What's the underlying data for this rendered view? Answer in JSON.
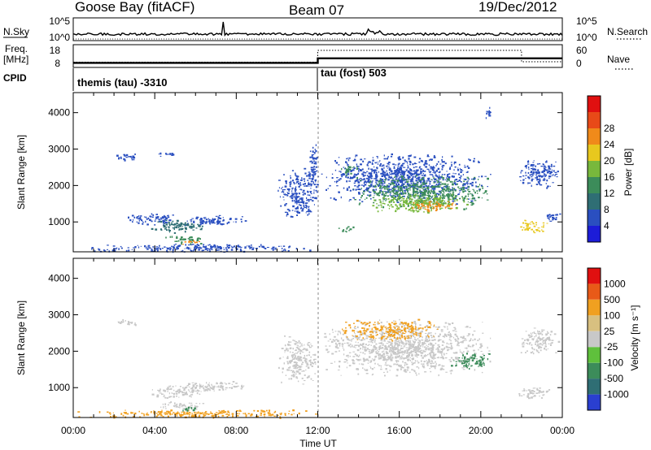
{
  "header": {
    "station": "Goose Bay (fitACF)",
    "beam": "Beam 07",
    "date": "19/Dec/2012"
  },
  "nsky_panel": {
    "left_label": "N.Sky",
    "right_label": "N.Search",
    "left_ticks": [
      "10^5",
      "10^0"
    ],
    "right_ticks": [
      "10^5",
      "10^0"
    ]
  },
  "freq_panel": {
    "left_label_top": "Freq.",
    "left_label_unit": "[MHz]",
    "left_ticks": [
      "18",
      "8"
    ],
    "right_label": "Nave",
    "right_ticks": [
      "60",
      "0"
    ]
  },
  "cpid_panel": {
    "label": "CPID",
    "modes": [
      {
        "name": "themis (tau) -3310",
        "start_hour": 0
      },
      {
        "name": "tau (fost) 503",
        "start_hour": 12
      }
    ]
  },
  "x_axis": {
    "label": "Time UT",
    "ticks": [
      "00:00",
      "04:00",
      "08:00",
      "12:00",
      "16:00",
      "20:00",
      "00:00"
    ],
    "tick_hours": [
      0,
      4,
      8,
      12,
      16,
      20,
      24
    ]
  },
  "power_panel": {
    "ylabel": "Slant Range [km]",
    "yticks": [
      "4000",
      "3000",
      "2000",
      "1000"
    ],
    "ytick_values": [
      4000,
      3000,
      2000,
      1000
    ],
    "colorbar_label": "Power [dB]",
    "colorbar_ticks": [
      "28",
      "24",
      "20",
      "16",
      "12",
      "8",
      "4"
    ],
    "colors": [
      "#1c1cd8",
      "#2a4fc0",
      "#2f6e74",
      "#3c8c5a",
      "#78b83c",
      "#e8c81e",
      "#f08a1a",
      "#e84a18",
      "#e01010"
    ]
  },
  "velocity_panel": {
    "ylabel": "Slant Range [km]",
    "yticks": [
      "4000",
      "3000",
      "2000",
      "1000"
    ],
    "ytick_values": [
      4000,
      3000,
      2000,
      1000
    ],
    "colorbar_label": "Velocity [m s⁻¹]",
    "colorbar_ticks": [
      "1000",
      "500",
      "100",
      "25",
      "-25",
      "-100",
      "-500",
      "-1000"
    ],
    "colors": [
      "#2a3fd0",
      "#2f6e74",
      "#3c8c5a",
      "#5fc03c",
      "#c8c8c8",
      "#d8c080",
      "#f0a020",
      "#e85a18",
      "#e01010"
    ]
  },
  "chart_data": [
    {
      "type": "heatmap",
      "title": "Power",
      "x_label": "Time UT",
      "y_label": "Slant Range [km]",
      "x_range_hours": [
        0,
        24
      ],
      "y_range_km": [
        180,
        4550
      ],
      "value_label": "Power [dB]",
      "value_range": [
        0,
        32
      ],
      "regions": [
        {
          "t0": 0.0,
          "t1": 12.0,
          "r0": 180,
          "r1": 420,
          "value": 6
        },
        {
          "t0": 4.5,
          "t1": 6.5,
          "r0": 400,
          "r1": 650,
          "value": 12
        },
        {
          "t0": 5.3,
          "t1": 6.2,
          "r0": 380,
          "r1": 520,
          "value": 22
        },
        {
          "t0": 2.6,
          "t1": 5.0,
          "r0": 900,
          "r1": 1300,
          "value": 6
        },
        {
          "t0": 3.6,
          "t1": 6.5,
          "r0": 700,
          "r1": 1100,
          "value": 10
        },
        {
          "t0": 5.0,
          "t1": 8.6,
          "r0": 900,
          "r1": 1200,
          "value": 7
        },
        {
          "t0": 2.0,
          "t1": 3.5,
          "r0": 2700,
          "r1": 2900,
          "value": 5
        },
        {
          "t0": 4.0,
          "t1": 5.0,
          "r0": 2800,
          "r1": 2950,
          "value": 5
        },
        {
          "t0": 10.0,
          "t1": 12.0,
          "r0": 1100,
          "r1": 2500,
          "value": 5
        },
        {
          "t0": 11.5,
          "t1": 12.0,
          "r0": 1400,
          "r1": 3300,
          "value": 5
        },
        {
          "t0": 12.0,
          "t1": 20.5,
          "r0": 1500,
          "r1": 2900,
          "value": 5
        },
        {
          "t0": 13.5,
          "t1": 20.5,
          "r0": 1350,
          "r1": 2300,
          "value": 12
        },
        {
          "t0": 14.5,
          "t1": 19.5,
          "r0": 1250,
          "r1": 1800,
          "value": 17
        },
        {
          "t0": 16.5,
          "t1": 19.0,
          "r0": 1300,
          "r1": 1600,
          "value": 22
        },
        {
          "t0": 13.0,
          "t1": 14.0,
          "r0": 2300,
          "r1": 2600,
          "value": 12
        },
        {
          "t0": 13.0,
          "t1": 13.8,
          "r0": 700,
          "r1": 900,
          "value": 12
        },
        {
          "t0": 20.2,
          "t1": 20.6,
          "r0": 3800,
          "r1": 4200,
          "value": 6
        },
        {
          "t0": 21.8,
          "t1": 23.9,
          "r0": 1900,
          "r1": 2800,
          "value": 6
        },
        {
          "t0": 21.8,
          "t1": 23.4,
          "r0": 700,
          "r1": 1100,
          "value": 18
        },
        {
          "t0": 23.0,
          "t1": 23.9,
          "r0": 1000,
          "r1": 1300,
          "value": 5
        }
      ]
    },
    {
      "type": "heatmap",
      "title": "Velocity",
      "x_label": "Time UT",
      "y_label": "Slant Range [km]",
      "x_range_hours": [
        0,
        24
      ],
      "y_range_km": [
        180,
        4550
      ],
      "value_label": "Velocity [m s⁻¹]",
      "value_range": [
        -1000,
        1000
      ],
      "regions": [
        {
          "t0": 0.0,
          "t1": 12.0,
          "r0": 180,
          "r1": 420,
          "value": -150
        },
        {
          "t0": 4.0,
          "t1": 6.5,
          "r0": 400,
          "r1": 650,
          "value": 0
        },
        {
          "t0": 5.0,
          "t1": 6.0,
          "r0": 320,
          "r1": 480,
          "value": 150
        },
        {
          "t0": 3.6,
          "t1": 6.5,
          "r0": 700,
          "r1": 1100,
          "value": 0
        },
        {
          "t0": 5.0,
          "t1": 8.6,
          "r0": 900,
          "r1": 1200,
          "value": 0
        },
        {
          "t0": 2.0,
          "t1": 3.5,
          "r0": 2700,
          "r1": 2900,
          "value": 0
        },
        {
          "t0": 10.0,
          "t1": 12.0,
          "r0": 1100,
          "r1": 2500,
          "value": 0
        },
        {
          "t0": 12.0,
          "t1": 20.5,
          "r0": 1300,
          "r1": 2900,
          "value": 0
        },
        {
          "t0": 13.0,
          "t1": 18.0,
          "r0": 2300,
          "r1": 2900,
          "value": -150
        },
        {
          "t0": 18.5,
          "t1": 20.5,
          "r0": 1500,
          "r1": 2000,
          "value": 150
        },
        {
          "t0": 21.8,
          "t1": 23.9,
          "r0": 1900,
          "r1": 2700,
          "value": 0
        },
        {
          "t0": 21.8,
          "t1": 23.4,
          "r0": 700,
          "r1": 1100,
          "value": 0
        }
      ]
    },
    {
      "type": "line",
      "title": "Freq.",
      "y_label": "[MHz]",
      "y_range": [
        8,
        18
      ],
      "x": [
        0,
        12,
        12,
        24
      ],
      "y": [
        10,
        10,
        12,
        12
      ]
    },
    {
      "type": "line",
      "title": "Nave",
      "y_range": [
        0,
        60
      ],
      "x": [
        0,
        12,
        12,
        22,
        22,
        24
      ],
      "y": [
        14,
        14,
        45,
        45,
        15,
        15
      ]
    }
  ]
}
